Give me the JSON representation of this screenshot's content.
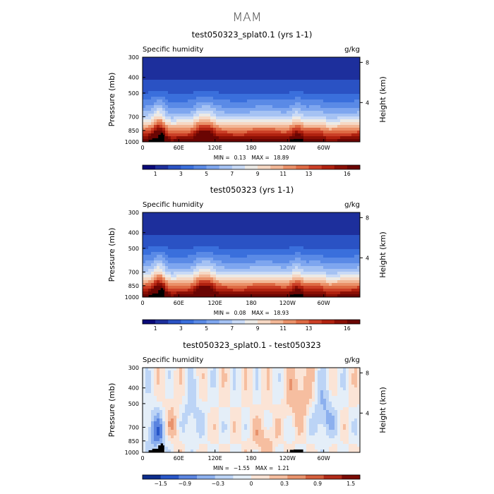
{
  "figure": {
    "title": "MAM"
  },
  "panels": [
    {
      "title": "test050323_splat0.1 (yrs 1-1)",
      "left_label": "Specific humidity",
      "right_label": "g/kg",
      "stats": {
        "min_label": "MIN =",
        "min": "0.13",
        "max_label": "MAX =",
        "max": "18.89"
      },
      "colorbar_labels": [
        "1",
        "3",
        "5",
        "7",
        "9",
        "11",
        "13",
        "16"
      ],
      "kind": "abs"
    },
    {
      "title": "test050323 (yrs 1-1)",
      "left_label": "Specific humidity",
      "right_label": "g/kg",
      "stats": {
        "min_label": "MIN =",
        "min": "0.08",
        "max_label": "MAX =",
        "max": "18.93"
      },
      "colorbar_labels": [
        "1",
        "3",
        "5",
        "7",
        "9",
        "11",
        "13",
        "16"
      ],
      "kind": "abs"
    },
    {
      "title": "test050323_splat0.1 - test050323",
      "left_label": "Specific humidity",
      "right_label": "g/kg",
      "stats": {
        "min_label": "MIN =",
        "min": "−1.55",
        "max_label": "MAX =",
        "max": "1.21"
      },
      "colorbar_labels": [
        "−1.5",
        "−0.9",
        "−0.3",
        "0",
        "0.3",
        "0.9",
        "1.5"
      ],
      "kind": "diff"
    }
  ],
  "axes": {
    "y_label": "Pressure (mb)",
    "y_ticks": [
      "300",
      "400",
      "500",
      "700",
      "850",
      "1000"
    ],
    "y_tick_values": [
      300,
      400,
      500,
      700,
      850,
      1000
    ],
    "y2_label": "Height (km)",
    "y2_ticks": [
      "8",
      "4"
    ],
    "y2_tick_values_km": [
      8,
      4
    ],
    "x_ticks": [
      "0",
      "60E",
      "120E",
      "180",
      "120W",
      "60W"
    ],
    "x_tick_values": [
      0,
      60,
      120,
      180,
      240,
      300
    ],
    "x_range": [
      0,
      360
    ]
  },
  "chart_data": [
    {
      "type": "heatmap",
      "title": "test050323_splat0.1 (yrs 1-1)",
      "variable": "Specific humidity",
      "units": "g/kg",
      "x_range": [
        0,
        360
      ],
      "y_range": [
        1000,
        300
      ],
      "min": 0.13,
      "max": 18.89,
      "levels": [
        0,
        1,
        2,
        3,
        4,
        5,
        6,
        7,
        8,
        9,
        10,
        11,
        12,
        13,
        14,
        15,
        16
      ],
      "profile": [
        {
          "p": 300,
          "q": 0.3
        },
        {
          "p": 400,
          "q": 0.8
        },
        {
          "p": 500,
          "q": 2.0
        },
        {
          "p": 600,
          "q": 3.8
        },
        {
          "p": 700,
          "q": 6.0
        },
        {
          "p": 775,
          "q": 8.5
        },
        {
          "p": 850,
          "q": 11.5
        },
        {
          "p": 925,
          "q": 14.0
        },
        {
          "p": 1000,
          "q": 16.5
        }
      ],
      "moist_lons": [
        25,
        32,
        95,
        110,
        255
      ],
      "dry_lons": [
        40,
        310
      ]
    },
    {
      "type": "heatmap",
      "title": "test050323 (yrs 1-1)",
      "variable": "Specific humidity",
      "units": "g/kg",
      "x_range": [
        0,
        360
      ],
      "y_range": [
        1000,
        300
      ],
      "min": 0.08,
      "max": 18.93,
      "levels": [
        0,
        1,
        2,
        3,
        4,
        5,
        6,
        7,
        8,
        9,
        10,
        11,
        12,
        13,
        14,
        15,
        16
      ],
      "profile": [
        {
          "p": 300,
          "q": 0.3
        },
        {
          "p": 400,
          "q": 0.8
        },
        {
          "p": 500,
          "q": 2.0
        },
        {
          "p": 600,
          "q": 3.8
        },
        {
          "p": 700,
          "q": 6.0
        },
        {
          "p": 775,
          "q": 8.5
        },
        {
          "p": 850,
          "q": 11.5
        },
        {
          "p": 925,
          "q": 14.0
        },
        {
          "p": 1000,
          "q": 16.5
        }
      ],
      "moist_lons": [
        25,
        32,
        95,
        110,
        255
      ],
      "dry_lons": [
        40,
        310
      ]
    },
    {
      "type": "heatmap",
      "title": "test050323_splat0.1 - test050323",
      "variable": "Specific humidity",
      "units": "g/kg",
      "x_range": [
        0,
        360
      ],
      "y_range": [
        1000,
        300
      ],
      "min": -1.55,
      "max": 1.21,
      "levels": [
        -1.5,
        -1.2,
        -0.9,
        -0.6,
        -0.3,
        0,
        0.3,
        0.6,
        0.9,
        1.2,
        1.5
      ],
      "features": [
        {
          "lon": 28,
          "p": 750,
          "value": -1.5
        },
        {
          "lon": 42,
          "p": 700,
          "value": 1.0
        },
        {
          "lon": 80,
          "p": 620,
          "value": -0.5
        },
        {
          "lon": 200,
          "p": 850,
          "value": 0.5
        },
        {
          "lon": 260,
          "p": 450,
          "value": 0.6
        },
        {
          "lon": 300,
          "p": 600,
          "value": -0.7
        }
      ]
    }
  ],
  "colors": {
    "abs_scale": [
      "#0a0a78",
      "#1d2f9c",
      "#2a52c4",
      "#3a6fdc",
      "#5a8ae6",
      "#7ea6ef",
      "#a5c2f3",
      "#c9daf6",
      "#eceae6",
      "#f6d8c4",
      "#f2b796",
      "#ea9068",
      "#de6a44",
      "#cb3f26",
      "#b0210f",
      "#8a0f05",
      "#6a0503"
    ],
    "diff_scale": [
      "#0c2c8c",
      "#2856c8",
      "#5a84e0",
      "#8cb0ee",
      "#bcd4f6",
      "#e4eef8",
      "#fbe4d6",
      "#f6bea0",
      "#e8926c",
      "#d45e3c",
      "#b02a18",
      "#7a0a04"
    ],
    "topography": "#000000"
  }
}
